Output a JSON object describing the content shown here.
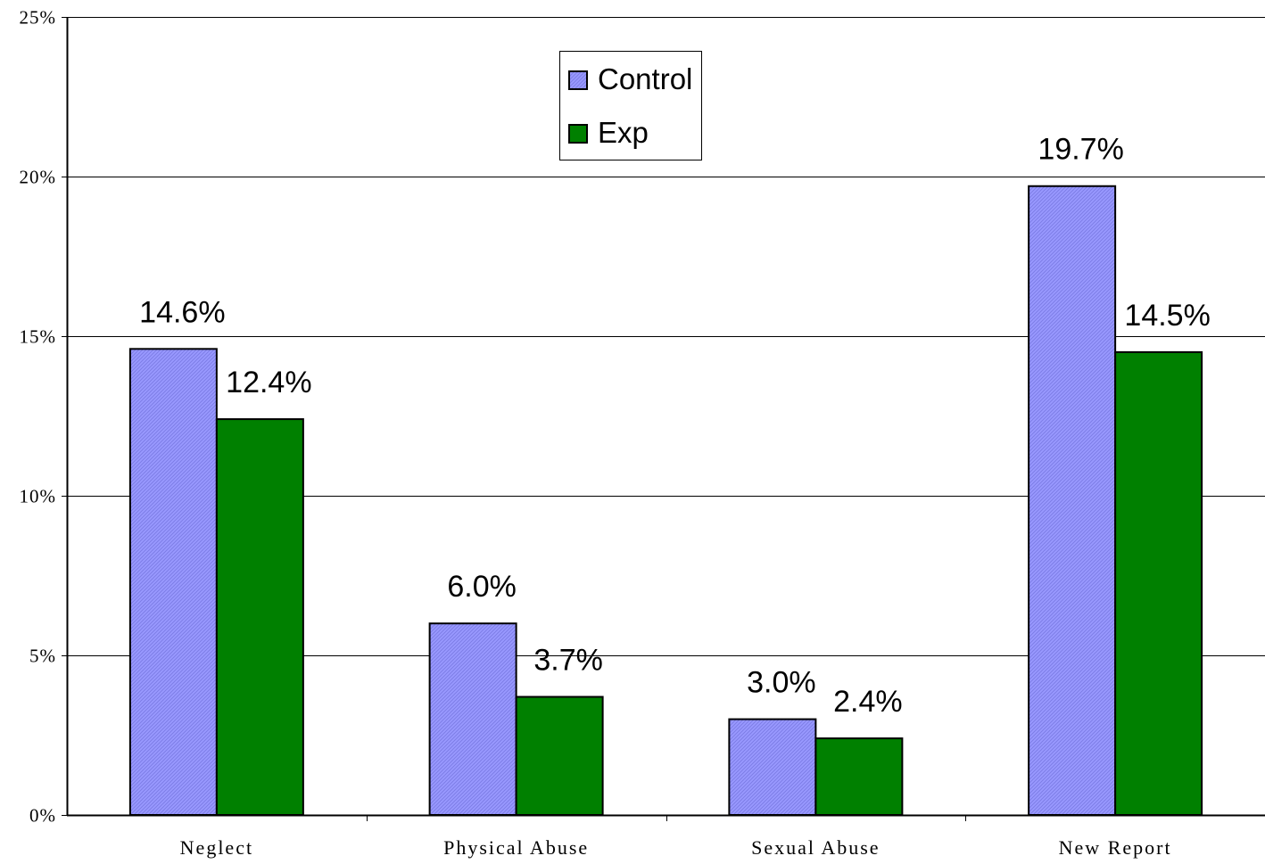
{
  "chart_data": {
    "type": "bar",
    "categories": [
      "Neglect",
      "Physical Abuse",
      "Sexual Abuse",
      "New Report"
    ],
    "series": [
      {
        "name": "Control",
        "values": [
          14.6,
          6.0,
          3.0,
          19.7
        ],
        "labels": [
          "14.6%",
          "6.0%",
          "3.0%",
          "19.7%"
        ],
        "color": "#9999ff",
        "pattern": "diagonal-hatch"
      },
      {
        "name": "Exp",
        "values": [
          12.4,
          3.7,
          2.4,
          14.5
        ],
        "labels": [
          "12.4%",
          "3.7%",
          "2.4%",
          "14.5%"
        ],
        "color": "#008000"
      }
    ],
    "ylim": [
      0,
      25
    ],
    "yticks": [
      0,
      5,
      10,
      15,
      20,
      25
    ],
    "ytick_labels": [
      "0%",
      "5%",
      "10%",
      "15%",
      "20%",
      "25%"
    ],
    "grid": true,
    "legend_position": "top-center",
    "title": "",
    "xlabel": "",
    "ylabel": ""
  }
}
